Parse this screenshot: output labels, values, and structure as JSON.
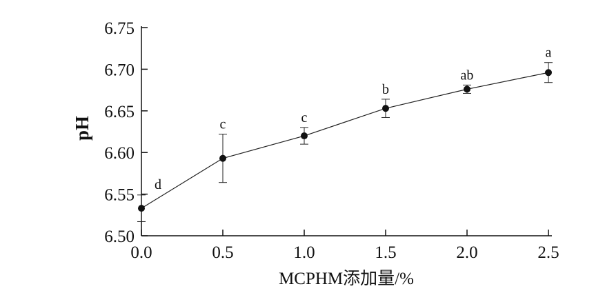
{
  "chart_data": {
    "type": "line",
    "title": "",
    "xlabel": "MCPHM添加量/%",
    "ylabel": "pH",
    "x": [
      0.0,
      0.5,
      1.0,
      1.5,
      2.0,
      2.5
    ],
    "x_tick_labels": [
      "0.0",
      "0.5",
      "1.0",
      "1.5",
      "2.0",
      "2.5"
    ],
    "y_tick_labels": [
      "6.50",
      "6.55",
      "6.60",
      "6.65",
      "6.70",
      "6.75"
    ],
    "xlim": [
      0.0,
      2.5
    ],
    "ylim": [
      6.5,
      6.75
    ],
    "grid": false,
    "legend": "none",
    "series": [
      {
        "values": [
          6.533,
          6.593,
          6.62,
          6.653,
          6.676,
          6.696
        ],
        "error": [
          0.016,
          0.029,
          0.01,
          0.011,
          0.005,
          0.012
        ],
        "significance": [
          "d",
          "c",
          "c",
          "b",
          "ab",
          "a"
        ]
      }
    ]
  }
}
